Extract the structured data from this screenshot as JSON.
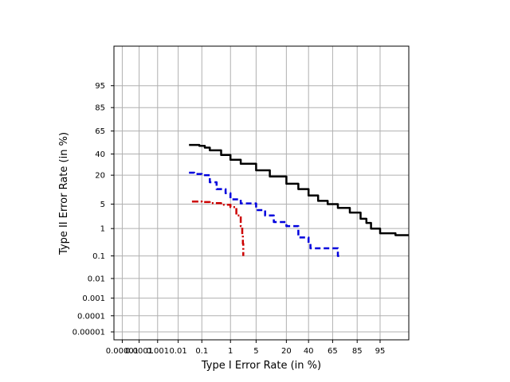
{
  "chart_data": {
    "type": "line",
    "title": "",
    "xlabel": "Type I Error Rate (in %)",
    "ylabel": "Type II Error Rate (in %)",
    "x_scale": "probit",
    "y_scale": "probit",
    "xlim": [
      3e-06,
      99.2
    ],
    "ylim": [
      3e-06,
      99.7
    ],
    "xticks": [
      1e-05,
      0.0001,
      0.001,
      0.01,
      0.1,
      1,
      5,
      20,
      40,
      65,
      85,
      95
    ],
    "xtick_labels": [
      "0.00001",
      "0.0001",
      "0.001",
      "0.01",
      "0.1",
      "1",
      "5",
      "20",
      "40",
      "65",
      "85",
      "95"
    ],
    "yticks": [
      1e-05,
      0.0001,
      0.001,
      0.01,
      0.1,
      1,
      5,
      20,
      40,
      65,
      85,
      95
    ],
    "ytick_labels": [
      "0.00001",
      "0.0001",
      "0.001",
      "0.01",
      "0.1",
      "1",
      "5",
      "20",
      "40",
      "65",
      "85",
      "95"
    ],
    "grid": true,
    "legend": "none",
    "series": [
      {
        "color": "#000000",
        "style": "solid",
        "points": [
          [
            0.03,
            50
          ],
          [
            0.08,
            49
          ],
          [
            0.13,
            47
          ],
          [
            0.2,
            44
          ],
          [
            0.5,
            39
          ],
          [
            1,
            34
          ],
          [
            2,
            30
          ],
          [
            5,
            24
          ],
          [
            10,
            19
          ],
          [
            20,
            14
          ],
          [
            30,
            11
          ],
          [
            40,
            8
          ],
          [
            50,
            6
          ],
          [
            60,
            5
          ],
          [
            70,
            4
          ],
          [
            80,
            3
          ],
          [
            87,
            2
          ],
          [
            90,
            1.5
          ],
          [
            92,
            1
          ],
          [
            94,
            1
          ],
          [
            95,
            0.7
          ],
          [
            97,
            0.7
          ],
          [
            98,
            0.6
          ],
          [
            99.2,
            0.6
          ]
        ]
      },
      {
        "color": "#0000dd",
        "style": "dashed",
        "points": [
          [
            0.03,
            22
          ],
          [
            0.05,
            21
          ],
          [
            0.1,
            20
          ],
          [
            0.2,
            15
          ],
          [
            0.35,
            11
          ],
          [
            0.7,
            9
          ],
          [
            1,
            6.5
          ],
          [
            2,
            5.2
          ],
          [
            5,
            3.5
          ],
          [
            8,
            2.5
          ],
          [
            12,
            1.6
          ],
          [
            20,
            1.2
          ],
          [
            30,
            0.5
          ],
          [
            40,
            0.3
          ],
          [
            42,
            0.2
          ],
          [
            50,
            0.2
          ],
          [
            65,
            0.2
          ],
          [
            70,
            0.1
          ],
          [
            72,
            0.1
          ]
        ]
      },
      {
        "color": "#cc0000",
        "style": "dashdot",
        "points": [
          [
            0.04,
            5.8
          ],
          [
            0.1,
            5.6
          ],
          [
            0.2,
            5.3
          ],
          [
            0.5,
            4.8
          ],
          [
            1,
            4.2
          ],
          [
            1.5,
            2.5
          ],
          [
            2,
            1.2
          ],
          [
            2.2,
            0.6
          ],
          [
            2.3,
            0.3
          ],
          [
            2.35,
            0.1
          ]
        ]
      }
    ]
  }
}
